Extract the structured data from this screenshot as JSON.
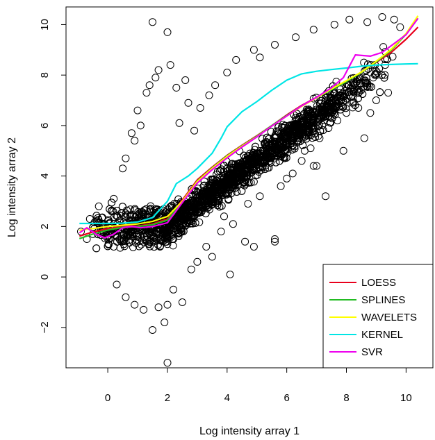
{
  "chart_data": {
    "type": "scatter",
    "title": "",
    "xlabel": "Log intensity array 1",
    "ylabel": "Log intensity array 2",
    "xlim": [
      -1.4,
      10.9
    ],
    "ylim": [
      -3.6,
      10.7
    ],
    "xticks": [
      0,
      2,
      4,
      6,
      8,
      10
    ],
    "yticks": [
      -2,
      0,
      2,
      4,
      6,
      8,
      10
    ],
    "xtick_labels": [
      "0",
      "2",
      "4",
      "6",
      "8",
      "10"
    ],
    "ytick_labels": [
      "−2",
      "0",
      "2",
      "4",
      "6",
      "8",
      "10"
    ],
    "grid": false,
    "legend_position": "bottom-right",
    "scatter_style": {
      "marker": "open-circle",
      "color": "#000000"
    },
    "points": [
      [
        1.5,
        10.1
      ],
      [
        2.0,
        9.7
      ],
      [
        1.4,
        7.6
      ],
      [
        1.7,
        8.2
      ],
      [
        2.1,
        8.4
      ],
      [
        -0.6,
        2.3
      ],
      [
        -0.3,
        2.8
      ],
      [
        0.2,
        3.1
      ],
      [
        0.6,
        4.7
      ],
      [
        0.9,
        5.4
      ],
      [
        1.1,
        6.0
      ],
      [
        1.3,
        7.3
      ],
      [
        1.6,
        7.9
      ],
      [
        2.3,
        7.5
      ],
      [
        2.6,
        7.8
      ],
      [
        2.7,
        6.9
      ],
      [
        3.1,
        6.7
      ],
      [
        3.4,
        7.2
      ],
      [
        4.3,
        8.6
      ],
      [
        4.9,
        9.0
      ],
      [
        5.1,
        8.7
      ],
      [
        5.6,
        9.2
      ],
      [
        6.3,
        9.5
      ],
      [
        6.9,
        9.8
      ],
      [
        7.6,
        10.0
      ],
      [
        8.1,
        10.2
      ],
      [
        8.7,
        10.1
      ],
      [
        9.2,
        10.3
      ],
      [
        9.6,
        10.2
      ],
      [
        9.8,
        9.9
      ],
      [
        9.3,
        8.4
      ],
      [
        8.9,
        7.9
      ],
      [
        8.5,
        7.4
      ],
      [
        8.2,
        6.9
      ],
      [
        8.0,
        6.5
      ],
      [
        7.7,
        6.2
      ],
      [
        7.4,
        5.9
      ],
      [
        7.1,
        5.5
      ],
      [
        6.8,
        5.1
      ],
      [
        6.9,
        4.4
      ],
      [
        6.5,
        4.6
      ],
      [
        6.2,
        4.1
      ],
      [
        5.8,
        3.6
      ],
      [
        5.1,
        3.2
      ],
      [
        4.7,
        2.9
      ],
      [
        4.2,
        2.1
      ],
      [
        3.8,
        1.8
      ],
      [
        3.3,
        1.2
      ],
      [
        3.5,
        0.8
      ],
      [
        4.6,
        1.4
      ],
      [
        4.9,
        1.2
      ],
      [
        5.6,
        1.4
      ],
      [
        5.6,
        1.5
      ],
      [
        4.1,
        0.1
      ],
      [
        2.5,
        -1.0
      ],
      [
        2.2,
        -0.5
      ],
      [
        2.0,
        -1.1
      ],
      [
        1.7,
        -1.2
      ],
      [
        1.5,
        -2.1
      ],
      [
        1.9,
        -1.8
      ],
      [
        1.2,
        -1.3
      ],
      [
        0.9,
        -1.1
      ],
      [
        0.6,
        -0.8
      ],
      [
        0.3,
        -0.3
      ],
      [
        2.0,
        -3.4
      ],
      [
        -0.9,
        1.8
      ],
      [
        -0.7,
        1.5
      ],
      [
        -0.5,
        1.7
      ],
      [
        0.0,
        1.6
      ],
      [
        0.2,
        1.2
      ],
      [
        7.0,
        4.4
      ],
      [
        7.3,
        3.2
      ],
      [
        8.4,
        6.7
      ],
      [
        8.8,
        6.5
      ],
      [
        9.4,
        7.3
      ],
      [
        9.0,
        7.0
      ],
      [
        8.6,
        5.5
      ],
      [
        7.9,
        5.0
      ],
      [
        6.0,
        3.9
      ],
      [
        6.6,
        5.0
      ],
      [
        7.2,
        6.4
      ],
      [
        2.8,
        0.3
      ],
      [
        3.0,
        0.6
      ],
      [
        3.9,
        2.4
      ],
      [
        0.5,
        4.3
      ],
      [
        0.8,
        5.7
      ],
      [
        1.0,
        6.6
      ],
      [
        2.4,
        6.1
      ],
      [
        2.9,
        5.8
      ],
      [
        3.6,
        7.6
      ],
      [
        4.0,
        8.1
      ]
    ],
    "series": [
      {
        "name": "LOESS",
        "color": "#e8001c",
        "x": [
          -0.95,
          -0.5,
          0,
          0.5,
          1,
          1.5,
          2,
          2.5,
          3,
          3.5,
          4,
          4.5,
          5,
          5.5,
          6,
          6.5,
          7,
          7.5,
          8,
          8.5,
          9,
          9.5,
          10,
          10.4
        ],
        "y": [
          1.62,
          1.78,
          1.92,
          2.0,
          2.02,
          2.1,
          2.3,
          3.05,
          3.85,
          4.35,
          4.82,
          5.22,
          5.6,
          6.0,
          6.42,
          6.8,
          7.12,
          7.45,
          7.75,
          8.1,
          8.5,
          8.9,
          9.42,
          9.9
        ]
      },
      {
        "name": "SPLINES",
        "color": "#22bb22",
        "x": [
          -0.95,
          -0.5,
          0,
          0.5,
          1,
          1.5,
          2,
          2.5,
          3,
          3.5,
          4,
          4.5,
          5,
          5.5,
          6,
          6.5,
          7,
          7.5,
          8,
          8.5,
          9,
          9.5,
          10,
          10.4
        ],
        "y": [
          1.52,
          1.7,
          1.86,
          1.97,
          2.0,
          2.07,
          2.25,
          3.0,
          3.8,
          4.32,
          4.8,
          5.2,
          5.58,
          6.0,
          6.4,
          6.78,
          7.1,
          7.42,
          7.74,
          8.1,
          8.52,
          8.98,
          9.62,
          10.25
        ]
      },
      {
        "name": "WAVELETS",
        "color": "#ffff00",
        "x": [
          -0.95,
          -0.5,
          0,
          0.5,
          1,
          1.5,
          2,
          2.5,
          3,
          3.5,
          4,
          4.5,
          5,
          5.5,
          6,
          6.5,
          7,
          7.5,
          8,
          8.5,
          9,
          9.5,
          10,
          10.4
        ],
        "y": [
          1.85,
          1.92,
          2.0,
          2.05,
          2.1,
          2.2,
          2.4,
          3.0,
          3.78,
          4.3,
          4.78,
          5.18,
          5.56,
          5.98,
          6.38,
          6.76,
          7.1,
          7.45,
          7.78,
          8.12,
          8.55,
          9.02,
          9.65,
          10.35
        ]
      },
      {
        "name": "KERNEL",
        "color": "#00e5e5",
        "x": [
          -0.95,
          -0.5,
          0,
          0.5,
          1,
          1.5,
          2,
          2.3,
          2.7,
          3,
          3.5,
          3.8,
          4,
          4.5,
          5,
          5.5,
          6,
          6.5,
          7,
          7.5,
          8,
          8.5,
          9,
          9.5,
          10,
          10.4
        ],
        "y": [
          2.12,
          2.12,
          2.12,
          2.13,
          2.18,
          2.35,
          3.0,
          3.7,
          4.0,
          4.3,
          4.9,
          5.5,
          5.95,
          6.55,
          6.95,
          7.4,
          7.8,
          8.05,
          8.15,
          8.22,
          8.28,
          8.35,
          8.4,
          8.42,
          8.44,
          8.45
        ]
      },
      {
        "name": "SVR",
        "color": "#ee00ee",
        "x": [
          -0.95,
          -0.7,
          -0.4,
          -0.1,
          0.2,
          0.5,
          0.8,
          1.1,
          1.5,
          2,
          2.5,
          3,
          3.5,
          4,
          4.5,
          5,
          5.5,
          6,
          6.5,
          7,
          7.5,
          7.9,
          8.3,
          8.8,
          9.2,
          9.6,
          10,
          10.4
        ],
        "y": [
          1.75,
          1.95,
          1.7,
          1.55,
          1.7,
          1.95,
          2.0,
          1.95,
          2.0,
          2.15,
          2.95,
          3.72,
          4.25,
          4.72,
          5.15,
          5.55,
          5.98,
          6.38,
          6.78,
          7.12,
          7.5,
          7.9,
          8.8,
          8.75,
          8.9,
          9.25,
          9.6,
          10.25
        ]
      }
    ]
  }
}
